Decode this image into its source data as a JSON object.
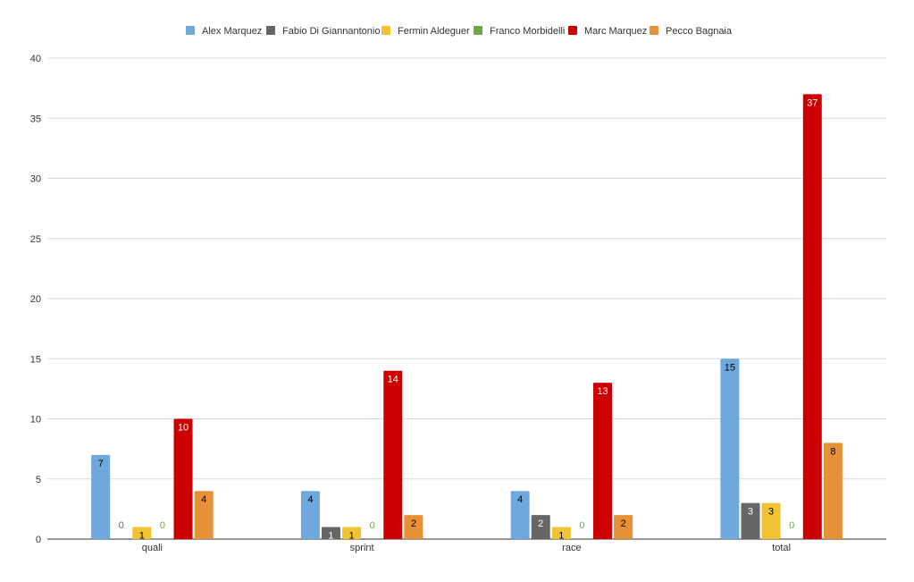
{
  "chart_data": {
    "type": "bar",
    "title": "",
    "xlabel": "",
    "ylabel": "",
    "categories": [
      "quali",
      "sprint",
      "race",
      "total"
    ],
    "ylim": [
      0,
      40
    ],
    "yticks": [
      "0",
      "5",
      "10",
      "15",
      "20",
      "25",
      "30",
      "35",
      "40"
    ],
    "grid": true,
    "legend_position": "top-center",
    "series": [
      {
        "name": "Alex Marquez",
        "color": "#6fa8dc",
        "label_color": "#000000",
        "values": [
          7,
          4,
          4,
          15
        ]
      },
      {
        "name": "Fabio Di Giannantonio",
        "color": "#666666",
        "label_color": "#ffffff",
        "values": [
          0,
          1,
          2,
          3
        ]
      },
      {
        "name": "Fermin Aldeguer",
        "color": "#f1c232",
        "label_color": "#000000",
        "values": [
          1,
          1,
          1,
          3
        ]
      },
      {
        "name": "Franco Morbidelli",
        "color": "#6aa84f",
        "label_color": "#6aa84f",
        "values": [
          0,
          0,
          0,
          0
        ]
      },
      {
        "name": "Marc Marquez",
        "color": "#cc0000",
        "label_color": "#ffffff",
        "values": [
          10,
          14,
          13,
          37
        ]
      },
      {
        "name": "Pecco Bagnaia",
        "color": "#e69138",
        "label_color": "#000000",
        "values": [
          4,
          2,
          2,
          8
        ]
      }
    ]
  }
}
